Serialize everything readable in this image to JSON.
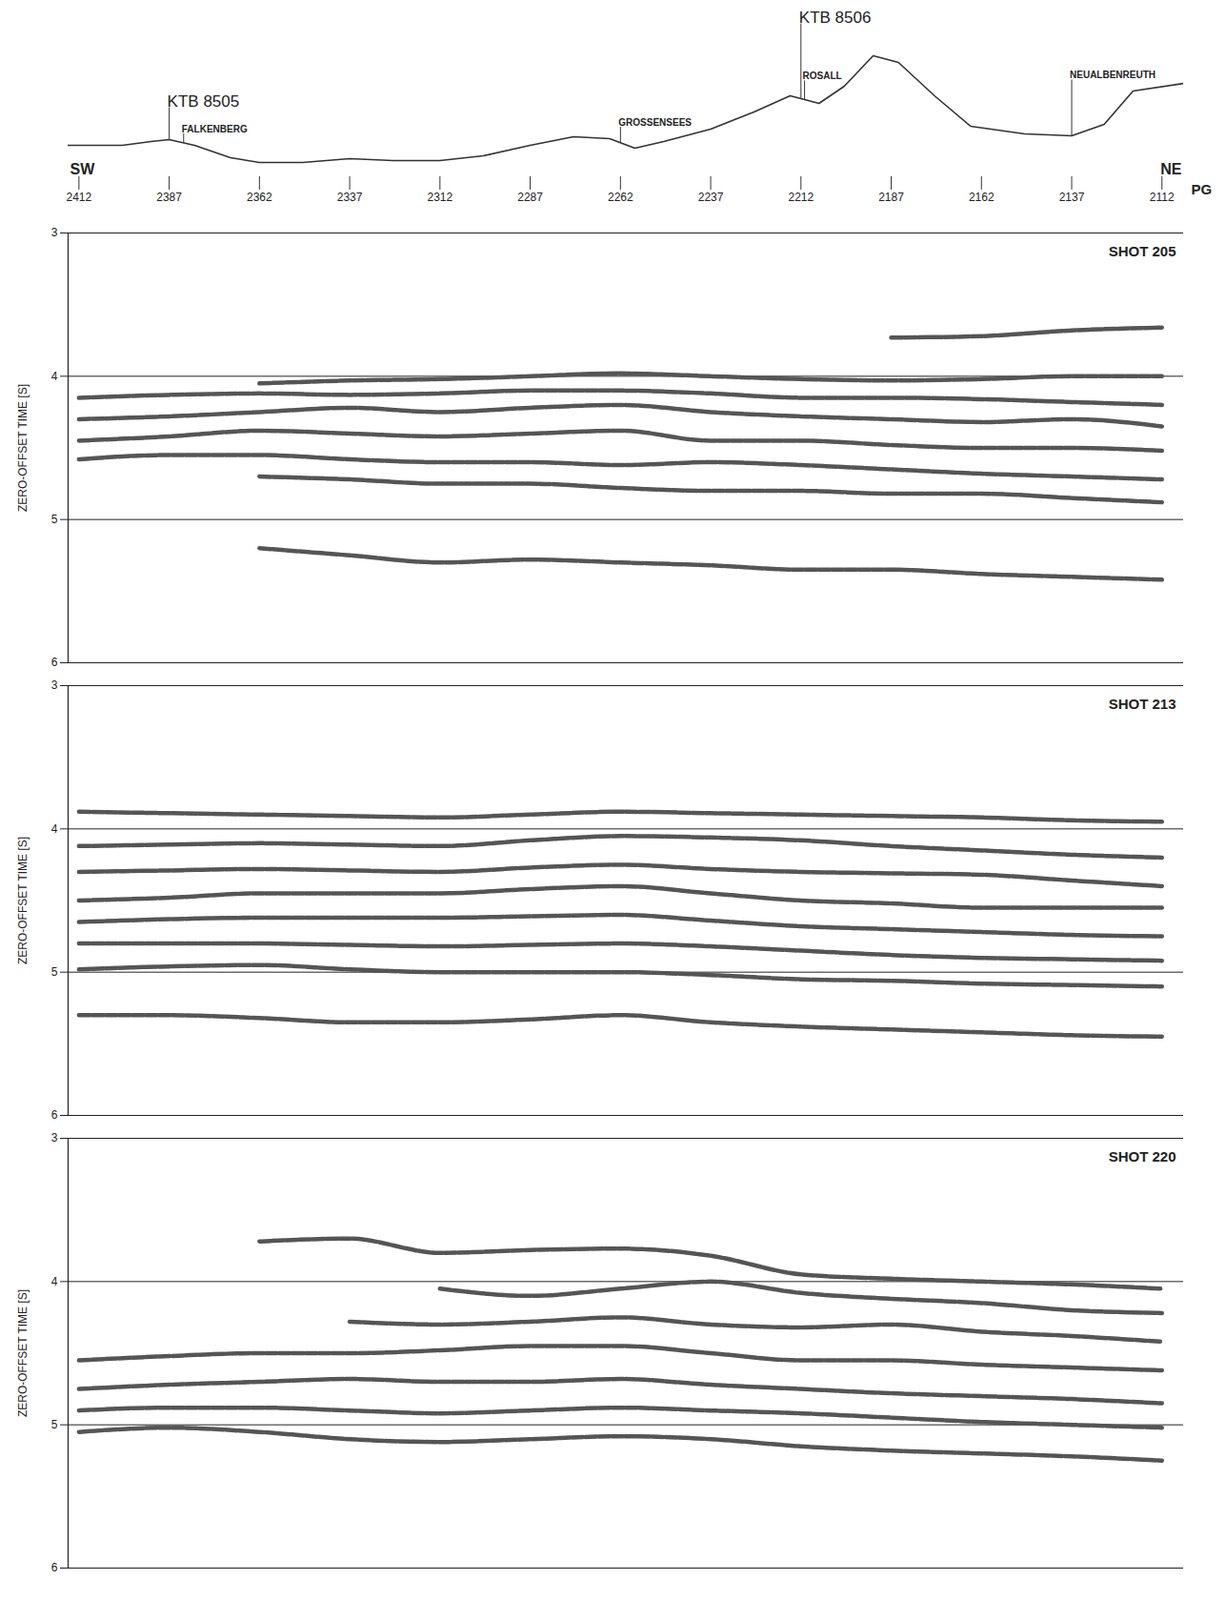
{
  "chart_data": [
    {
      "type": "line",
      "x_label": "PG",
      "direction_labels": [
        "SW",
        "NE"
      ],
      "x": [
        2415,
        2400,
        2392,
        2387,
        2380,
        2370,
        2362,
        2350,
        2337,
        2325,
        2312,
        2300,
        2287,
        2275,
        2265,
        2258,
        2250,
        2237,
        2225,
        2215,
        2207,
        2200,
        2192,
        2185,
        2175,
        2165,
        2150,
        2137,
        2128,
        2120,
        2106
      ],
      "series": [
        {
          "color": "#333333",
          "values": [
            506,
            506,
            514,
            518,
            506,
            480,
            470,
            470,
            478,
            474,
            474,
            484,
            506,
            524,
            520,
            500,
            514,
            540,
            576,
            610,
            594,
            630,
            694,
            680,
            610,
            546,
            530,
            526,
            550,
            620,
            636
          ]
        }
      ],
      "xlim": [
        2415,
        2106
      ],
      "xticks": [
        2412,
        2387,
        2362,
        2337,
        2312,
        2287,
        2262,
        2237,
        2212,
        2187,
        2162,
        2137,
        2112
      ],
      "ylim": [
        440,
        720
      ],
      "tick_labels": "x",
      "wells": [
        {
          "label": "KTB 8505",
          "x": 2387
        },
        {
          "label": "KTB 8506",
          "x": 2212
        }
      ],
      "places": [
        {
          "label": "FALKENBERG",
          "x": 2383
        },
        {
          "label": "GROSSENSEES",
          "x": 2262
        },
        {
          "label": "ROSALL",
          "x": 2211
        },
        {
          "label": "NEUALBENREUTH",
          "x": 2137
        }
      ]
    },
    {
      "type": "line",
      "title": "SHOT 205",
      "y_label": "ZERO-OFFSET TIME [S]",
      "x": [
        2412,
        2387,
        2362,
        2337,
        2312,
        2287,
        2262,
        2237,
        2212,
        2187,
        2162,
        2137,
        2112
      ],
      "color": "#555555",
      "series": [
        {
          "values": [
            null,
            null,
            null,
            null,
            null,
            null,
            null,
            null,
            null,
            3.73,
            3.72,
            3.68,
            3.66
          ]
        },
        {
          "values": [
            null,
            null,
            4.05,
            4.03,
            4.02,
            4.0,
            3.98,
            4.0,
            4.02,
            4.03,
            4.02,
            4.0,
            4.0
          ]
        },
        {
          "values": [
            4.15,
            4.13,
            4.12,
            4.13,
            4.12,
            4.1,
            4.1,
            4.12,
            4.15,
            4.15,
            4.16,
            4.18,
            4.2
          ]
        },
        {
          "values": [
            4.3,
            4.28,
            4.25,
            4.22,
            4.25,
            4.22,
            4.2,
            4.25,
            4.28,
            4.3,
            4.32,
            4.3,
            4.35
          ]
        },
        {
          "values": [
            4.45,
            4.42,
            4.38,
            4.4,
            4.42,
            4.4,
            4.38,
            4.45,
            4.45,
            4.48,
            4.5,
            4.5,
            4.52
          ]
        },
        {
          "values": [
            4.58,
            4.55,
            4.55,
            4.58,
            4.6,
            4.6,
            4.62,
            4.6,
            4.62,
            4.65,
            4.68,
            4.7,
            4.72
          ]
        },
        {
          "values": [
            null,
            null,
            4.7,
            4.72,
            4.75,
            4.75,
            4.78,
            4.8,
            4.8,
            4.82,
            4.82,
            4.85,
            4.88
          ]
        },
        {
          "values": [
            null,
            null,
            5.2,
            5.25,
            5.3,
            5.28,
            5.3,
            5.32,
            5.35,
            5.35,
            5.38,
            5.4,
            5.42
          ]
        }
      ],
      "xlim": [
        2415,
        2106
      ],
      "ylim": [
        6,
        3
      ],
      "yticks": [
        3,
        4,
        5,
        6
      ],
      "grid": true,
      "tick_labels": "y"
    },
    {
      "type": "line",
      "title": "SHOT 213",
      "y_label": "ZERO-OFFSET TIME [S]",
      "x": [
        2412,
        2387,
        2362,
        2337,
        2312,
        2287,
        2262,
        2237,
        2212,
        2187,
        2162,
        2137,
        2112
      ],
      "color": "#555555",
      "series": [
        {
          "values": [
            3.88,
            3.89,
            3.9,
            3.91,
            3.92,
            3.9,
            3.88,
            3.89,
            3.9,
            3.91,
            3.92,
            3.94,
            3.95
          ]
        },
        {
          "values": [
            4.12,
            4.11,
            4.1,
            4.11,
            4.12,
            4.08,
            4.05,
            4.06,
            4.08,
            4.12,
            4.15,
            4.18,
            4.2
          ]
        },
        {
          "values": [
            4.3,
            4.29,
            4.28,
            4.29,
            4.3,
            4.27,
            4.25,
            4.28,
            4.3,
            4.31,
            4.32,
            4.36,
            4.4
          ]
        },
        {
          "values": [
            4.5,
            4.48,
            4.45,
            4.45,
            4.45,
            4.42,
            4.4,
            4.45,
            4.5,
            4.52,
            4.55,
            4.55,
            4.55
          ]
        },
        {
          "values": [
            4.65,
            4.63,
            4.62,
            4.62,
            4.62,
            4.61,
            4.6,
            4.64,
            4.68,
            4.7,
            4.72,
            4.74,
            4.75
          ]
        },
        {
          "values": [
            4.8,
            4.8,
            4.8,
            4.81,
            4.82,
            4.81,
            4.8,
            4.82,
            4.85,
            4.88,
            4.9,
            4.91,
            4.92
          ]
        },
        {
          "values": [
            4.98,
            4.96,
            4.95,
            4.98,
            5.0,
            5.0,
            5.0,
            5.02,
            5.05,
            5.06,
            5.08,
            5.09,
            5.1
          ]
        },
        {
          "values": [
            5.3,
            5.3,
            5.32,
            5.35,
            5.35,
            5.33,
            5.3,
            5.35,
            5.38,
            5.4,
            5.42,
            5.44,
            5.45
          ]
        }
      ],
      "xlim": [
        2415,
        2106
      ],
      "ylim": [
        6,
        3
      ],
      "yticks": [
        3,
        4,
        5,
        6
      ],
      "grid": true,
      "tick_labels": "y"
    },
    {
      "type": "line",
      "title": "SHOT 220",
      "y_label": "ZERO-OFFSET TIME [S]",
      "x": [
        2412,
        2387,
        2362,
        2337,
        2312,
        2287,
        2262,
        2237,
        2212,
        2187,
        2162,
        2137,
        2112
      ],
      "color": "#555555",
      "series": [
        {
          "values": [
            null,
            null,
            3.72,
            3.7,
            3.8,
            3.78,
            3.77,
            3.82,
            3.95,
            3.98,
            4.0,
            4.02,
            4.05
          ]
        },
        {
          "values": [
            null,
            null,
            null,
            null,
            4.05,
            4.1,
            4.05,
            4.0,
            4.08,
            4.12,
            4.15,
            4.2,
            4.22
          ]
        },
        {
          "values": [
            null,
            null,
            null,
            4.28,
            4.3,
            4.28,
            4.25,
            4.3,
            4.32,
            4.3,
            4.35,
            4.38,
            4.42
          ]
        },
        {
          "values": [
            4.55,
            4.52,
            4.5,
            4.5,
            4.48,
            4.45,
            4.45,
            4.5,
            4.55,
            4.55,
            4.58,
            4.6,
            4.62
          ]
        },
        {
          "values": [
            4.75,
            4.72,
            4.7,
            4.68,
            4.7,
            4.7,
            4.68,
            4.72,
            4.75,
            4.78,
            4.8,
            4.82,
            4.85
          ]
        },
        {
          "values": [
            4.9,
            4.88,
            4.88,
            4.9,
            4.92,
            4.9,
            4.88,
            4.9,
            4.92,
            4.95,
            4.98,
            5.0,
            5.02
          ]
        },
        {
          "values": [
            5.05,
            5.02,
            5.05,
            5.1,
            5.12,
            5.1,
            5.08,
            5.1,
            5.15,
            5.18,
            5.2,
            5.22,
            5.25
          ]
        }
      ],
      "xlim": [
        2415,
        2106
      ],
      "ylim": [
        6,
        3
      ],
      "yticks": [
        3,
        4,
        5,
        6
      ],
      "grid": true,
      "tick_labels": "y"
    }
  ]
}
